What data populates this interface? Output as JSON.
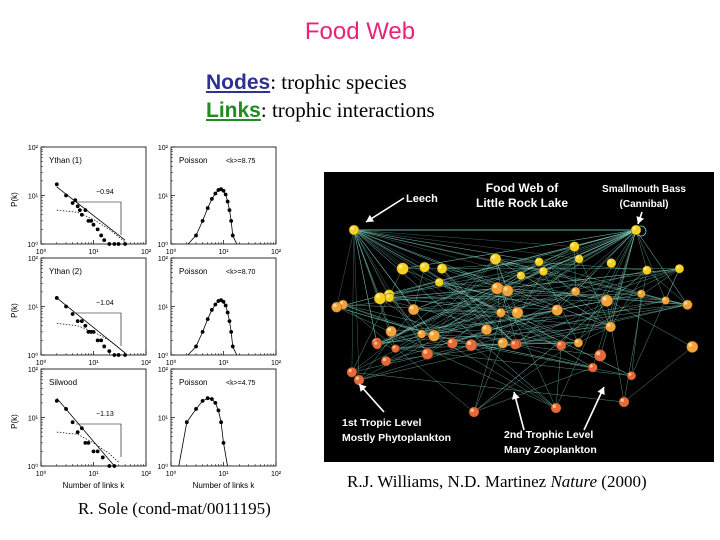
{
  "title": "Food Web",
  "definitions": {
    "nodes_term": "Nodes",
    "nodes_text": ": trophic species",
    "links_term": "Links",
    "links_text": ": trophic interactions"
  },
  "captions": {
    "network_source_prefix": "R.J. Williams, N.D. Martinez ",
    "network_source_journal": "Nature",
    "network_source_suffix": " (2000)",
    "plots_source": "R. Sole (cond-mat/0011195)"
  },
  "network": {
    "title_line1": "Food Web of",
    "title_line2": "Little Rock Lake",
    "labels": {
      "leech": "Leech",
      "bass_line1": "Smallmouth Bass",
      "bass_line2": "(Cannibal)",
      "level1_line1": "1st Tropic Level",
      "level1_line2": "Mostly Phytoplankton",
      "level2_line1": "2nd Trophic Level",
      "level2_line2": "Many Zooplankton"
    },
    "colors": {
      "background": "#000000",
      "edges": "#7fd3c0",
      "node_top": "#f3d21f",
      "node_mid": "#f2a23a",
      "node_low": "#e8683a",
      "labels": "#ffffff"
    }
  },
  "chart_data": [
    {
      "type": "scatter",
      "title": "Ythan (1)",
      "annotation": "−0.94",
      "xscale": "log",
      "yscale": "log",
      "xlim": [
        1,
        100
      ],
      "ylim": [
        1,
        100
      ],
      "xticks": [
        "10⁰",
        "10¹",
        "10²"
      ],
      "yticks": [
        "10⁰",
        "10¹",
        "10²"
      ],
      "ylabel": "P(k)",
      "x": [
        2,
        3,
        4,
        4.5,
        5,
        5.5,
        6,
        7,
        8,
        9,
        10,
        12,
        14,
        16,
        20,
        25,
        30,
        40
      ],
      "y": [
        17,
        10,
        7,
        8,
        6,
        5,
        4,
        5,
        3,
        3,
        2.5,
        2,
        1.5,
        1.2,
        1,
        1,
        1,
        1
      ],
      "fit_line": {
        "x": [
          2,
          40
        ],
        "y": [
          15,
          1.2
        ]
      },
      "null_model_curve": {
        "x": [
          2,
          5,
          10,
          20,
          40
        ],
        "y": [
          5,
          4.5,
          3.2,
          2,
          1.1
        ]
      }
    },
    {
      "type": "scatter",
      "title": "Poisson",
      "annotation": "<k>=8.75",
      "xscale": "log",
      "yscale": "log",
      "xlim": [
        1,
        100
      ],
      "ylim": [
        1,
        100
      ],
      "xticks": [
        "10⁰",
        "10¹",
        "10²"
      ],
      "yticks": [
        "10⁰",
        "10¹",
        "10²"
      ],
      "x": [
        3,
        4,
        5,
        6,
        7,
        8,
        9,
        10,
        11,
        12,
        13,
        14,
        15
      ],
      "y": [
        1.5,
        3,
        5.5,
        8.5,
        11,
        13,
        13.5,
        12.5,
        10.5,
        7.5,
        5,
        3,
        1.5
      ]
    },
    {
      "type": "scatter",
      "title": "Ythan (2)",
      "annotation": "−1.04",
      "xscale": "log",
      "yscale": "log",
      "xlim": [
        1,
        100
      ],
      "ylim": [
        1,
        100
      ],
      "xticks": [
        "10⁰",
        "10¹",
        "10²"
      ],
      "yticks": [
        "10⁰",
        "10¹",
        "10²"
      ],
      "ylabel": "P(k)",
      "x": [
        2,
        3,
        4,
        5,
        6,
        7,
        8,
        9,
        10,
        12,
        14,
        16,
        20,
        25,
        30,
        40
      ],
      "y": [
        15,
        10,
        7,
        5,
        5,
        4,
        3,
        3,
        3,
        2,
        2,
        1.5,
        1.2,
        1,
        1,
        1
      ],
      "fit_line": {
        "x": [
          2,
          40
        ],
        "y": [
          15,
          1.1
        ]
      },
      "null_model_curve": {
        "x": [
          2,
          5,
          10,
          20,
          40
        ],
        "y": [
          4.5,
          4,
          3,
          2,
          1.1
        ]
      }
    },
    {
      "type": "scatter",
      "title": "Poisson",
      "annotation": "<k>=8.70",
      "xscale": "log",
      "yscale": "log",
      "xlim": [
        1,
        100
      ],
      "ylim": [
        1,
        100
      ],
      "xticks": [
        "10⁰",
        "10¹",
        "10²"
      ],
      "yticks": [
        "10⁰",
        "10¹",
        "10²"
      ],
      "x": [
        3,
        4,
        5,
        6,
        7,
        8,
        9,
        10,
        11,
        12,
        13,
        14,
        15
      ],
      "y": [
        1.5,
        3,
        5.5,
        8.5,
        11,
        13,
        13.5,
        12.5,
        10.5,
        7.5,
        5,
        3,
        1.5
      ]
    },
    {
      "type": "scatter",
      "title": "Silwood",
      "annotation": "−1.13",
      "xscale": "log",
      "yscale": "log",
      "xlim": [
        1,
        100
      ],
      "ylim": [
        1,
        100
      ],
      "xticks": [
        "10⁰",
        "10¹",
        "10²"
      ],
      "yticks": [
        "10⁰",
        "10¹",
        "10²"
      ],
      "xlabel": "Number of links k",
      "ylabel": "P(k)",
      "x": [
        2,
        3,
        4,
        5,
        6,
        7,
        8,
        10,
        12,
        15,
        20,
        25
      ],
      "y": [
        22,
        15,
        8,
        5,
        6,
        3,
        3,
        2,
        2,
        1.5,
        1,
        1
      ],
      "fit_line": {
        "x": [
          2,
          25
        ],
        "y": [
          25,
          1
        ]
      },
      "null_model_curve": {
        "x": [
          2,
          5,
          10,
          20,
          30
        ],
        "y": [
          5,
          4.5,
          3,
          1.8,
          1.2
        ]
      }
    },
    {
      "type": "scatter",
      "title": "Poisson",
      "annotation": "<k>=4.75",
      "xscale": "log",
      "yscale": "log",
      "xlim": [
        1,
        100
      ],
      "ylim": [
        1,
        100
      ],
      "xticks": [
        "10⁰",
        "10¹",
        "10²"
      ],
      "yticks": [
        "10⁰",
        "10¹",
        "10²"
      ],
      "xlabel": "Number of links k",
      "x": [
        2,
        3,
        4,
        5,
        6,
        7,
        8,
        9,
        10
      ],
      "y": [
        8,
        15,
        22,
        25,
        24,
        20,
        14,
        8,
        3
      ]
    }
  ]
}
